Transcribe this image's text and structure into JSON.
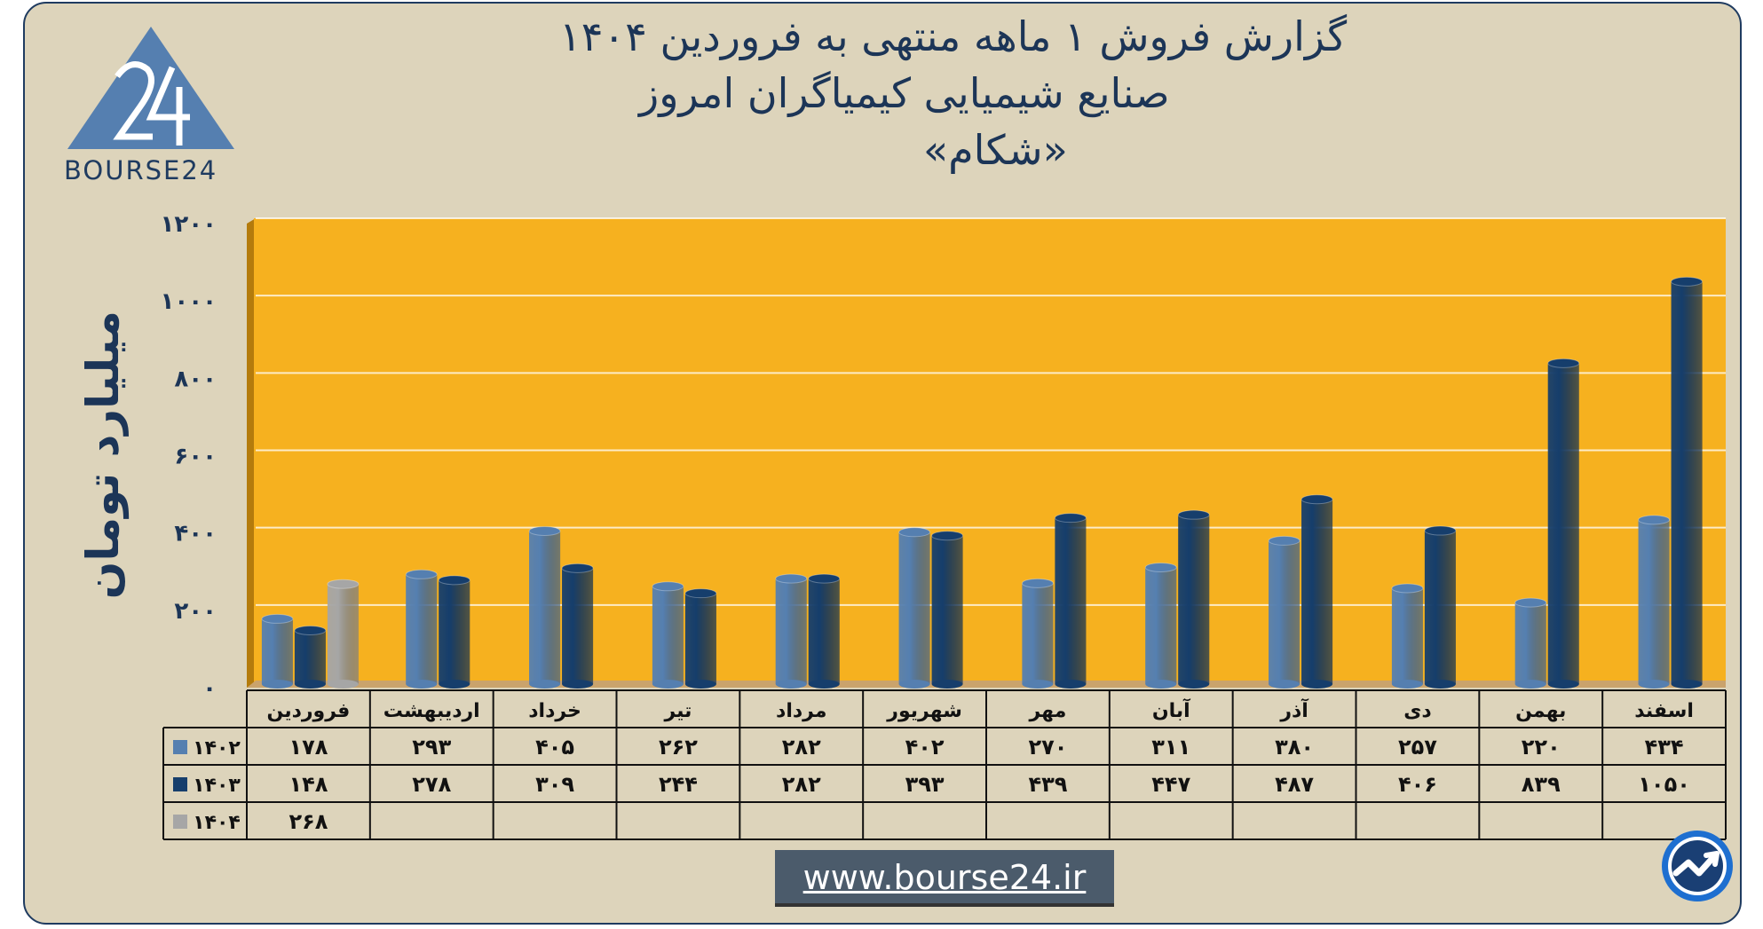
{
  "header": {
    "line1": "گزارش  فروش ۱ ماهه منتهی به فروردین ۱۴۰۴",
    "line2": "صنایع شیمیایی کیمیاگران امروز",
    "line3": "«شکام»"
  },
  "logo": {
    "icon": "bourse24-triangle-logo",
    "text": "BOURSE24"
  },
  "footer": {
    "url": "www.bourse24.ir"
  },
  "badge_icon": "bourse24-circle-arrow-icon",
  "colors": {
    "plot_bg": "#f6b11f",
    "panel_bg": "#ddd4bb",
    "s1402": "#557fb0",
    "s1403": "#163e6c",
    "s1404": "#a6a6a6",
    "text": "#1c3557"
  },
  "chart_data": {
    "type": "bar",
    "ylabel": "میلیارد تومان",
    "ylim": [
      0,
      1200
    ],
    "yticks": [
      "۰",
      "۲۰۰",
      "۴۰۰",
      "۶۰۰",
      "۸۰۰",
      "۱۰۰۰",
      "۱۲۰۰"
    ],
    "ytick_values": [
      0,
      200,
      400,
      600,
      800,
      1000,
      1200
    ],
    "grid": true,
    "categories": [
      "فروردین",
      "اردیبهشت",
      "خرداد",
      "تیر",
      "مرداد",
      "شهریور",
      "مهر",
      "آبان",
      "آذر",
      "دی",
      "بهمن",
      "اسفند"
    ],
    "series": [
      {
        "name": "۱۴۰۲",
        "color": "#557fb0",
        "values": [
          178,
          293,
          405,
          262,
          282,
          402,
          270,
          311,
          380,
          257,
          220,
          434
        ],
        "labels": [
          "۱۷۸",
          "۲۹۳",
          "۴۰۵",
          "۲۶۲",
          "۲۸۲",
          "۴۰۲",
          "۲۷۰",
          "۳۱۱",
          "۳۸۰",
          "۲۵۷",
          "۲۲۰",
          "۴۳۴"
        ]
      },
      {
        "name": "۱۴۰۳",
        "color": "#163e6c",
        "values": [
          148,
          278,
          309,
          244,
          282,
          393,
          439,
          447,
          487,
          406,
          839,
          1050
        ],
        "labels": [
          "۱۴۸",
          "۲۷۸",
          "۳۰۹",
          "۲۴۴",
          "۲۸۲",
          "۳۹۳",
          "۴۳۹",
          "۴۴۷",
          "۴۸۷",
          "۴۰۶",
          "۸۳۹",
          "۱۰۵۰"
        ]
      },
      {
        "name": "۱۴۰۴",
        "color": "#a6a6a6",
        "values": [
          268,
          null,
          null,
          null,
          null,
          null,
          null,
          null,
          null,
          null,
          null,
          null
        ],
        "labels": [
          "۲۶۸",
          "",
          "",
          "",
          "",
          "",
          "",
          "",
          "",
          "",
          "",
          ""
        ]
      }
    ]
  }
}
